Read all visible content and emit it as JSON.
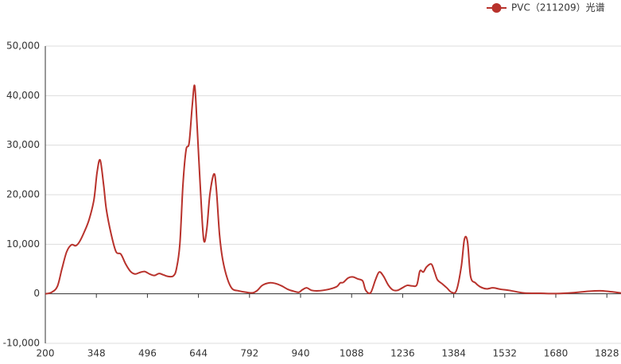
{
  "chart_data": {
    "type": "line",
    "x": [
      200,
      218,
      235,
      248,
      262,
      276,
      288,
      299,
      313,
      327,
      341,
      350,
      359,
      369,
      377,
      391,
      405,
      419,
      433,
      447,
      460,
      474,
      488,
      502,
      516,
      530,
      543,
      557,
      571,
      580,
      590,
      599,
      608,
      617,
      626,
      633,
      640,
      649,
      659,
      668,
      677,
      689,
      696,
      705,
      714,
      728,
      742,
      760,
      783,
      802,
      815,
      829,
      848,
      866,
      885,
      903,
      921,
      935,
      945,
      958,
      972,
      991,
      1014,
      1032,
      1046,
      1055,
      1064,
      1078,
      1092,
      1106,
      1120,
      1129,
      1143,
      1157,
      1168,
      1180,
      1194,
      1207,
      1221,
      1235,
      1249,
      1263,
      1277,
      1286,
      1296,
      1305,
      1319,
      1328,
      1337,
      1351,
      1364,
      1378,
      1392,
      1406,
      1415,
      1424,
      1433,
      1447,
      1461,
      1479,
      1498,
      1521,
      1544,
      1567,
      1590,
      1636,
      1682,
      1728,
      1774,
      1809,
      1843,
      1869
    ],
    "series": [
      {
        "name": "PVC（211209）光谱",
        "color": "#b8322c",
        "values": [
          0,
          300,
          1500,
          5000,
          8500,
          9900,
          9700,
          10500,
          12500,
          15000,
          19000,
          24500,
          27000,
          22000,
          17000,
          12000,
          8500,
          8000,
          6000,
          4500,
          4000,
          4300,
          4500,
          4000,
          3700,
          4100,
          3800,
          3500,
          3600,
          5000,
          10000,
          22000,
          29000,
          30500,
          38000,
          42000,
          34000,
          22000,
          11000,
          13000,
          20000,
          24200,
          21000,
          12000,
          7000,
          3000,
          1000,
          600,
          300,
          200,
          700,
          1700,
          2200,
          2100,
          1600,
          900,
          500,
          300,
          800,
          1200,
          700,
          600,
          800,
          1100,
          1500,
          2200,
          2300,
          3200,
          3400,
          3000,
          2600,
          700,
          200,
          2800,
          4400,
          3600,
          1800,
          800,
          700,
          1200,
          1700,
          1600,
          1800,
          4600,
          4400,
          5400,
          6000,
          4500,
          2800,
          2000,
          1200,
          300,
          700,
          5500,
          11000,
          10500,
          3500,
          2200,
          1400,
          1000,
          1200,
          900,
          700,
          400,
          150,
          100,
          50,
          200,
          500,
          600,
          400,
          150
        ]
      }
    ],
    "xlim": [
      200,
      1869
    ],
    "xticks": [
      200,
      348,
      496,
      644,
      792,
      940,
      1088,
      1236,
      1384,
      1532,
      1680,
      1828
    ],
    "ylim": [
      -10000,
      50000
    ],
    "yticks": [
      {
        "value": -10000,
        "label": "-10,000"
      },
      0,
      {
        "value": 10000,
        "label": "10,000"
      },
      {
        "value": 20000,
        "label": "20,000"
      },
      {
        "value": 30000,
        "label": "30,000"
      },
      {
        "value": 40000,
        "label": "40,000"
      },
      {
        "value": 50000,
        "label": "50,000"
      }
    ],
    "grid": true,
    "legend": "top-right"
  }
}
